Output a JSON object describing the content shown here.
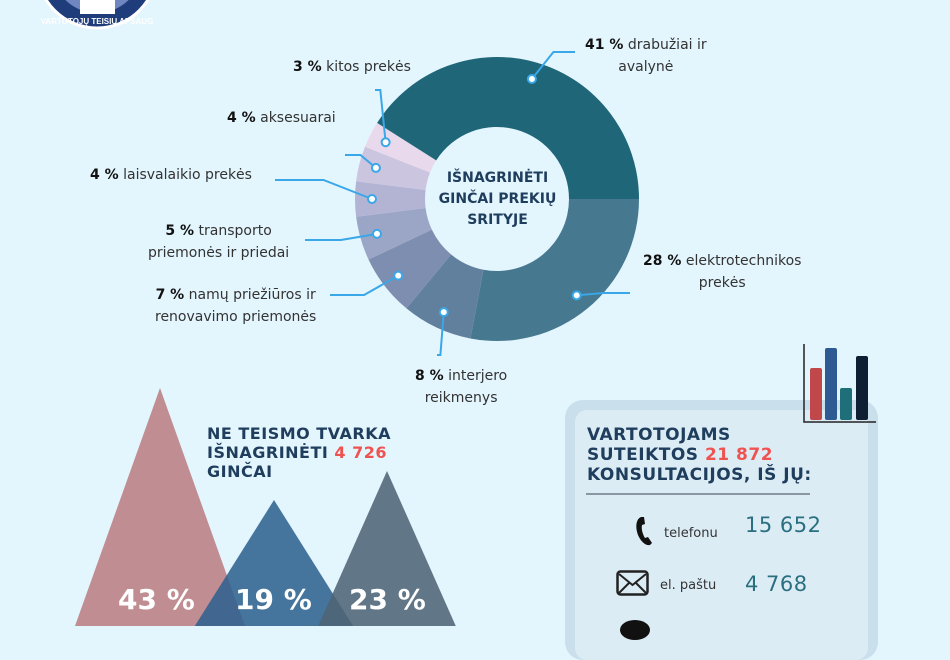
{
  "logo": {
    "text": "VARTOTOJŲ TEISIŲ APSAUGOS"
  },
  "chart_data": {
    "type": "pie",
    "title": "IŠNAGRINĖTI GINČAI PREKIŲ SRITYJE",
    "unit": "%",
    "slices": [
      {
        "label": "elektrotechnikos prekės",
        "value": 28,
        "color": "#46788f"
      },
      {
        "label": "interjero reikmenys",
        "value": 8,
        "color": "#61809d"
      },
      {
        "label": "namų priežiūros ir renovavimo priemonės",
        "value": 7,
        "color": "#7d8eb0"
      },
      {
        "label": "transporto priemonės ir priedai",
        "value": 5,
        "color": "#9ba5c5"
      },
      {
        "label": "laisvalaikio prekės",
        "value": 4,
        "color": "#b3b4d3"
      },
      {
        "label": "aksesuarai",
        "value": 4,
        "color": "#cbc5e0"
      },
      {
        "label": "kitos prekės",
        "value": 3,
        "color": "#e8daec"
      },
      {
        "label": "drabužiai ir avalynė",
        "value": 41,
        "color": "#1f6678"
      }
    ]
  },
  "labels": {
    "l41a": "41 %",
    "l41b": "drabužiai ir",
    "l41c": "avalynė",
    "l28a": "28 %",
    "l28b": "elektrotechnikos",
    "l28c": "prekės",
    "l8a": "8 %",
    "l8b": "interjero",
    "l8c": "reikmenys",
    "l7a": "7 %",
    "l7b": "namų priežiūros ir",
    "l7c": "renovavimo priemonės",
    "l5a": "5 %",
    "l5b": "transporto",
    "l5c": "priemonės ir priedai",
    "l4la": "4 %",
    "l4lb": "laisvalaikio prekės",
    "l4aa": "4 %",
    "l4ab": "aksesuarai",
    "l3a": "3 %",
    "l3b": "kitos prekės"
  },
  "center": {
    "line1": "IŠNAGRINĖTI",
    "line2": "GINČAI PREKIŲ",
    "line3": "SRITYJE"
  },
  "disputes": {
    "line1": "NE TEISMO TVARKA",
    "line2": "IŠNAGRINĖTI",
    "count": "4 726",
    "line3": "GINČAI",
    "percents": [
      "43 %",
      "19 %",
      "23 %"
    ],
    "colors": [
      "#c08d92",
      "#3f6d96",
      "#5e7181"
    ]
  },
  "consultations": {
    "line1": "VARTOTOJAMS",
    "line2": "SUTEIKTOS",
    "count": "21 872",
    "line3": "KONSULTACIJOS, IŠ JŲ:",
    "rows": [
      {
        "icon": "phone-icon",
        "label": "telefonu",
        "value": "15 652"
      },
      {
        "icon": "envelope-icon",
        "label": "el. paštu",
        "value": "4 768"
      }
    ],
    "accent": "#ef5350"
  }
}
